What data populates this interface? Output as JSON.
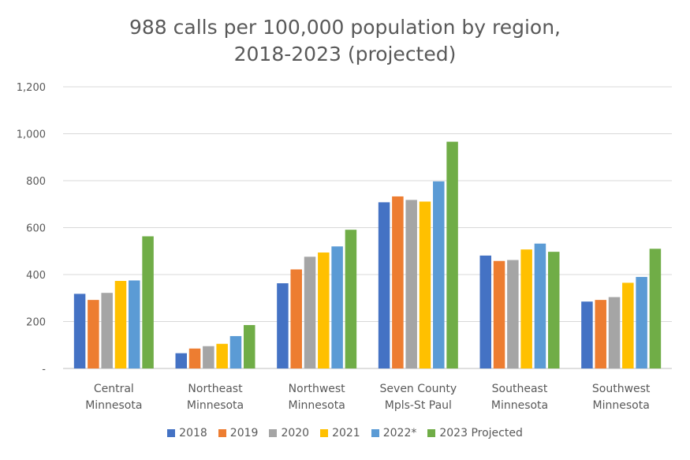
{
  "chart_data": {
    "type": "bar",
    "title_lines": [
      "988 calls per 100,000 population by region,",
      "2018-2023 (projected)"
    ],
    "categories": [
      [
        "Central",
        "Minnesota"
      ],
      [
        "Northeast",
        "Minnesota"
      ],
      [
        "Northwest",
        "Minnesota"
      ],
      [
        "Seven County",
        "Mpls-St Paul"
      ],
      [
        "Southeast",
        "Minnesota"
      ],
      [
        "Southwest",
        "Minnesota"
      ]
    ],
    "series": [
      {
        "name": "2018",
        "color": "#4472C4",
        "values": [
          318,
          65,
          363,
          708,
          481,
          285
        ]
      },
      {
        "name": "2019",
        "color": "#ED7D31",
        "values": [
          292,
          85,
          422,
          733,
          458,
          292
        ]
      },
      {
        "name": "2020",
        "color": "#A5A5A5",
        "values": [
          322,
          95,
          476,
          718,
          462,
          304
        ]
      },
      {
        "name": "2021",
        "color": "#FFC000",
        "values": [
          373,
          105,
          494,
          711,
          507,
          365
        ]
      },
      {
        "name": "2022*",
        "color": "#5B9BD5",
        "values": [
          375,
          138,
          520,
          797,
          532,
          390
        ]
      },
      {
        "name": "2023 Projected",
        "color": "#70AD47",
        "values": [
          563,
          185,
          591,
          966,
          497,
          510
        ]
      }
    ],
    "yticks": [
      {
        "value": 0,
        "label": "-"
      },
      {
        "value": 200,
        "label": "200"
      },
      {
        "value": 400,
        "label": "400"
      },
      {
        "value": 600,
        "label": "600"
      },
      {
        "value": 800,
        "label": "800"
      },
      {
        "value": 1000,
        "label": "1,000"
      },
      {
        "value": 1200,
        "label": "1,200"
      }
    ],
    "ylim": [
      0,
      1200
    ],
    "grid": true,
    "legend_position": "bottom"
  }
}
